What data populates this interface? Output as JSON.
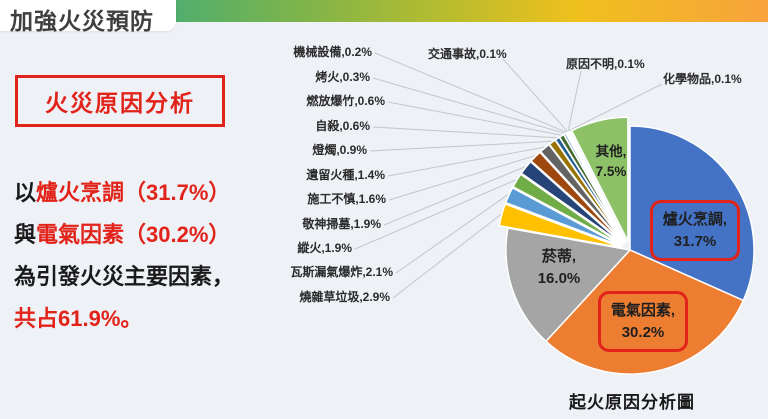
{
  "header": {
    "title": "加強火災預防"
  },
  "section_box": {
    "label": "火災原因分析"
  },
  "summary": {
    "line1_prefix": "以",
    "line1_red": "爐火烹調（31.7%）",
    "line2_prefix": "與",
    "line2_red": "電氣因素（30.2%）",
    "line3": "為引發火災主要因素，",
    "line4": "共占61.9%。"
  },
  "colors": {
    "accent_red": "#E2231A",
    "background": "#EEF1F6",
    "header_gradient": [
      "#4FAE6F",
      "#B5BC2F",
      "#EFC01D",
      "#F8A33C"
    ]
  },
  "chart_data": {
    "type": "pie",
    "title": "起火原因分析圖",
    "unit": "%",
    "start_angle_deg": 0,
    "direction": "clockwise",
    "slices": [
      {
        "label": "爐火烹調",
        "value": 31.7,
        "color": "#4472C4",
        "exploded": false,
        "highlight": true
      },
      {
        "label": "電氣因素",
        "value": 30.2,
        "color": "#ED7D31",
        "exploded": false,
        "highlight": true
      },
      {
        "label": "菸蒂",
        "value": 16.0,
        "color": "#A5A5A5",
        "exploded": false,
        "highlight": false
      },
      {
        "label": "燒雜草垃圾",
        "value": 2.9,
        "color": "#FFC000",
        "exploded": true,
        "highlight": false
      },
      {
        "label": "瓦斯漏氣爆炸",
        "value": 2.1,
        "color": "#5B9BD5",
        "exploded": true,
        "highlight": false
      },
      {
        "label": "縱火",
        "value": 1.9,
        "color": "#70AD47",
        "exploded": true,
        "highlight": false
      },
      {
        "label": "敬神掃墓",
        "value": 1.9,
        "color": "#264478",
        "exploded": true,
        "highlight": false
      },
      {
        "label": "施工不慎",
        "value": 1.6,
        "color": "#9E480E",
        "exploded": true,
        "highlight": false
      },
      {
        "label": "遺留火種",
        "value": 1.4,
        "color": "#636363",
        "exploded": true,
        "highlight": false
      },
      {
        "label": "燈燭",
        "value": 0.9,
        "color": "#997300",
        "exploded": true,
        "highlight": false
      },
      {
        "label": "自殺",
        "value": 0.6,
        "color": "#255E91",
        "exploded": true,
        "highlight": false
      },
      {
        "label": "燃放爆竹",
        "value": 0.6,
        "color": "#43682B",
        "exploded": true,
        "highlight": false
      },
      {
        "label": "烤火",
        "value": 0.3,
        "color": "#698ED0",
        "exploded": true,
        "highlight": false
      },
      {
        "label": "機械設備",
        "value": 0.2,
        "color": "#F1975A",
        "exploded": true,
        "highlight": false
      },
      {
        "label": "交通事故",
        "value": 0.1,
        "color": "#B7B7B7",
        "exploded": true,
        "highlight": false
      },
      {
        "label": "原因不明",
        "value": 0.1,
        "color": "#FFCD33",
        "exploded": true,
        "highlight": false
      },
      {
        "label": "化學物品",
        "value": 0.1,
        "color": "#7CAFDD",
        "exploded": true,
        "highlight": false
      }
    ],
    "other_slice": {
      "label": "其他",
      "value": 7.5,
      "color": "#8CC168",
      "exploded": true,
      "highlight": false
    },
    "legend": "none",
    "labels": "callout lines for small slices, inline labels for large slices"
  }
}
